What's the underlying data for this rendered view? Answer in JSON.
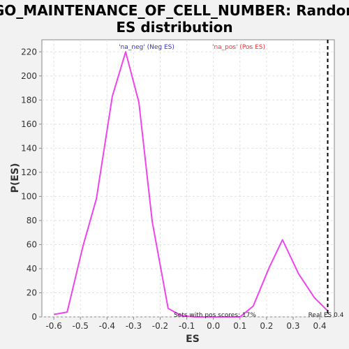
{
  "chart_data": {
    "type": "line",
    "title_lines": [
      "GO_MAINTENANCE_OF_CELL_NUMBER: Random",
      "ES distribution"
    ],
    "xlabel": "ES",
    "ylabel": "P(ES)",
    "xlim": [
      -0.645,
      0.455
    ],
    "ylim": [
      0,
      230
    ],
    "x_ticks": [
      -0.6,
      -0.5,
      -0.4,
      -0.3,
      -0.2,
      -0.1,
      0.0,
      0.1,
      0.2,
      0.3,
      0.4
    ],
    "x_tick_labels": [
      "-0.6",
      "-0.5",
      "-0.4",
      "-0.3",
      "-0.2",
      "-0.1",
      "0.0",
      "0.1",
      "0.2",
      "0.3",
      "0.4"
    ],
    "y_ticks": [
      0,
      20,
      40,
      60,
      80,
      100,
      120,
      140,
      160,
      180,
      200,
      220
    ],
    "y_tick_labels": [
      "0",
      "20",
      "40",
      "60",
      "80",
      "100",
      "120",
      "140",
      "160",
      "180",
      "200",
      "220"
    ],
    "grid": true,
    "legend": [
      {
        "label": "'na_neg' (Neg ES)",
        "color": "#3333cc"
      },
      {
        "label": "'na_pos' (Pos ES)",
        "color": "#ee3333"
      }
    ],
    "series": [
      {
        "color": "#ee44ee",
        "x": [
          -0.6,
          -0.55,
          -0.49,
          -0.44,
          -0.38,
          -0.33,
          -0.28,
          -0.23,
          -0.17,
          -0.12,
          -0.07,
          -0.01,
          0.04,
          0.1,
          0.15,
          0.21,
          0.26,
          0.32,
          0.38,
          0.43
        ],
        "y": [
          2,
          4,
          59,
          98,
          183,
          220,
          178,
          79,
          7,
          1,
          0,
          0,
          0,
          0,
          9,
          41,
          64,
          36,
          16,
          5
        ]
      }
    ],
    "reference_line": {
      "x": 0.43,
      "label": "Real ES 0.4",
      "style": "dashed",
      "color": "#000000"
    },
    "annotation": "Sets with pos scores: 17%"
  }
}
